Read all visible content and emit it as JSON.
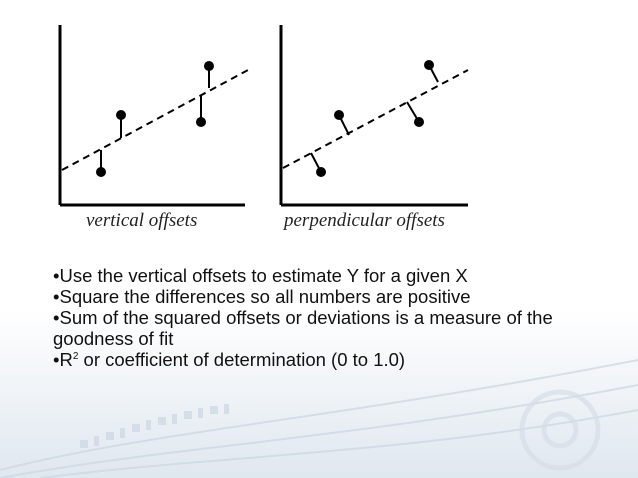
{
  "figure": {
    "left_caption": "vertical offsets",
    "right_caption": "perpendicular offsets"
  },
  "bullets": [
    "•Use the vertical offsets to estimate Y for a given X",
    "•Square the differences so all numbers are positive",
    "•Sum of the squared offsets or deviations is a measure of the goodness of fit"
  ],
  "last_bullet": {
    "prefix": "•R",
    "superscript": "2",
    "suffix": " or coefficient of determination (0 to 1.0)"
  }
}
